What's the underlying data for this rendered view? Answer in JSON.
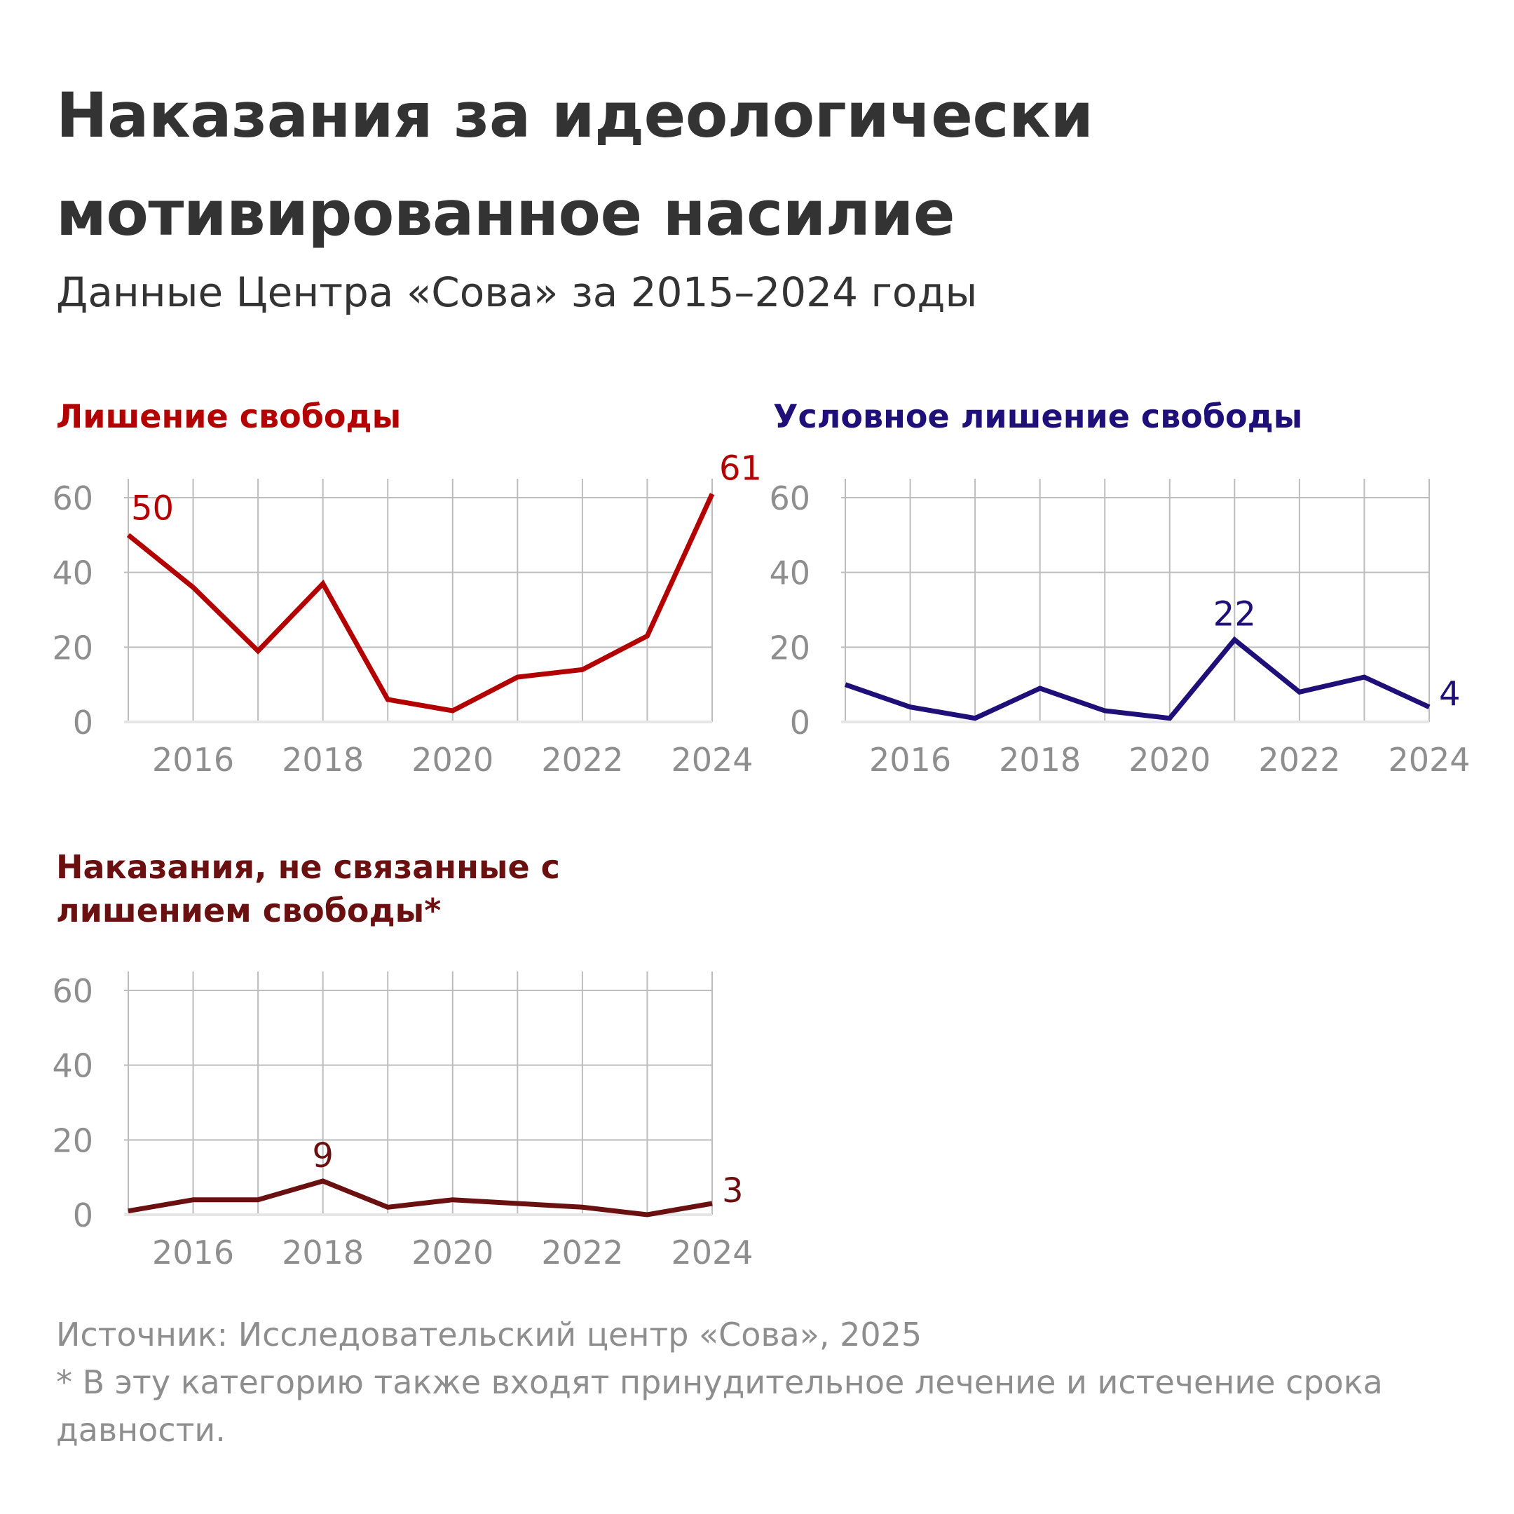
{
  "title": "Наказания за идеологически мотивированное насилие",
  "subtitle": "Данные Центра «Сова» за 2015–2024 годы",
  "chart_data": [
    {
      "type": "line",
      "title": "Лишение свободы",
      "color": "#b30000",
      "x": [
        2015,
        2016,
        2017,
        2018,
        2019,
        2020,
        2021,
        2022,
        2023,
        2024
      ],
      "values": [
        50,
        36,
        19,
        37,
        6,
        3,
        12,
        14,
        23,
        61
      ],
      "x_ticks": [
        "2016",
        "2018",
        "2020",
        "2022",
        "2024"
      ],
      "y_ticks": [
        "0",
        "20",
        "40",
        "60"
      ],
      "ylim": [
        0,
        65
      ],
      "annotations": [
        {
          "x": 2015,
          "value": 50,
          "label": "50"
        },
        {
          "x": 2024,
          "value": 61,
          "label": "61"
        }
      ]
    },
    {
      "type": "line",
      "title": "Условное лишение свободы",
      "color": "#1f0f78",
      "x": [
        2015,
        2016,
        2017,
        2018,
        2019,
        2020,
        2021,
        2022,
        2023,
        2024
      ],
      "values": [
        10,
        4,
        1,
        9,
        3,
        1,
        22,
        8,
        12,
        4
      ],
      "x_ticks": [
        "2016",
        "2018",
        "2020",
        "2022",
        "2024"
      ],
      "y_ticks": [
        "0",
        "20",
        "40",
        "60"
      ],
      "ylim": [
        0,
        65
      ],
      "annotations": [
        {
          "x": 2021,
          "value": 22,
          "label": "22"
        },
        {
          "x": 2024,
          "value": 4,
          "label": "4"
        }
      ]
    },
    {
      "type": "line",
      "title": "Наказания, не связанные с лишением свободы*",
      "color": "#6b1010",
      "x": [
        2015,
        2016,
        2017,
        2018,
        2019,
        2020,
        2021,
        2022,
        2023,
        2024
      ],
      "values": [
        1,
        4,
        4,
        9,
        2,
        4,
        3,
        2,
        0,
        3
      ],
      "x_ticks": [
        "2016",
        "2018",
        "2020",
        "2022",
        "2024"
      ],
      "y_ticks": [
        "0",
        "20",
        "40",
        "60"
      ],
      "ylim": [
        0,
        65
      ],
      "annotations": [
        {
          "x": 2018,
          "value": 9,
          "label": "9"
        },
        {
          "x": 2024,
          "value": 3,
          "label": "3"
        }
      ]
    }
  ],
  "footer": {
    "source": "Источник: Исследовательский центр «Сова», 2025",
    "note": "* В эту категорию также входят принудительное лечение и истечение срока давности."
  }
}
